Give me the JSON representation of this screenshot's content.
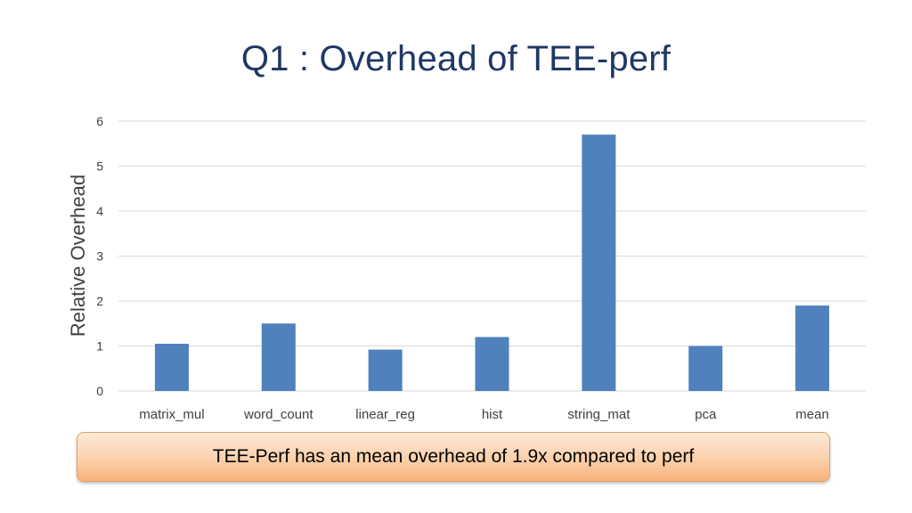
{
  "slide": {
    "title": "Q1 : Overhead of TEE-perf",
    "callout": "TEE-Perf has an mean overhead of 1.9x compared to perf"
  },
  "colors": {
    "bar": "#4f81bd",
    "title": "#1f3864",
    "grid": "#d9d9d9",
    "axis_text": "#404040"
  },
  "chart_data": {
    "type": "bar",
    "title": "",
    "xlabel": "",
    "ylabel": "Relative Overhead",
    "categories": [
      "matrix_mul",
      "word_count",
      "linear_reg",
      "hist",
      "string_mat",
      "pca",
      "mean"
    ],
    "values": [
      1.05,
      1.5,
      0.92,
      1.2,
      5.7,
      1.0,
      1.9
    ],
    "ylim": [
      0,
      6
    ],
    "yticks": [
      0,
      1,
      2,
      3,
      4,
      5,
      6
    ],
    "grid": true,
    "legend": "none"
  }
}
